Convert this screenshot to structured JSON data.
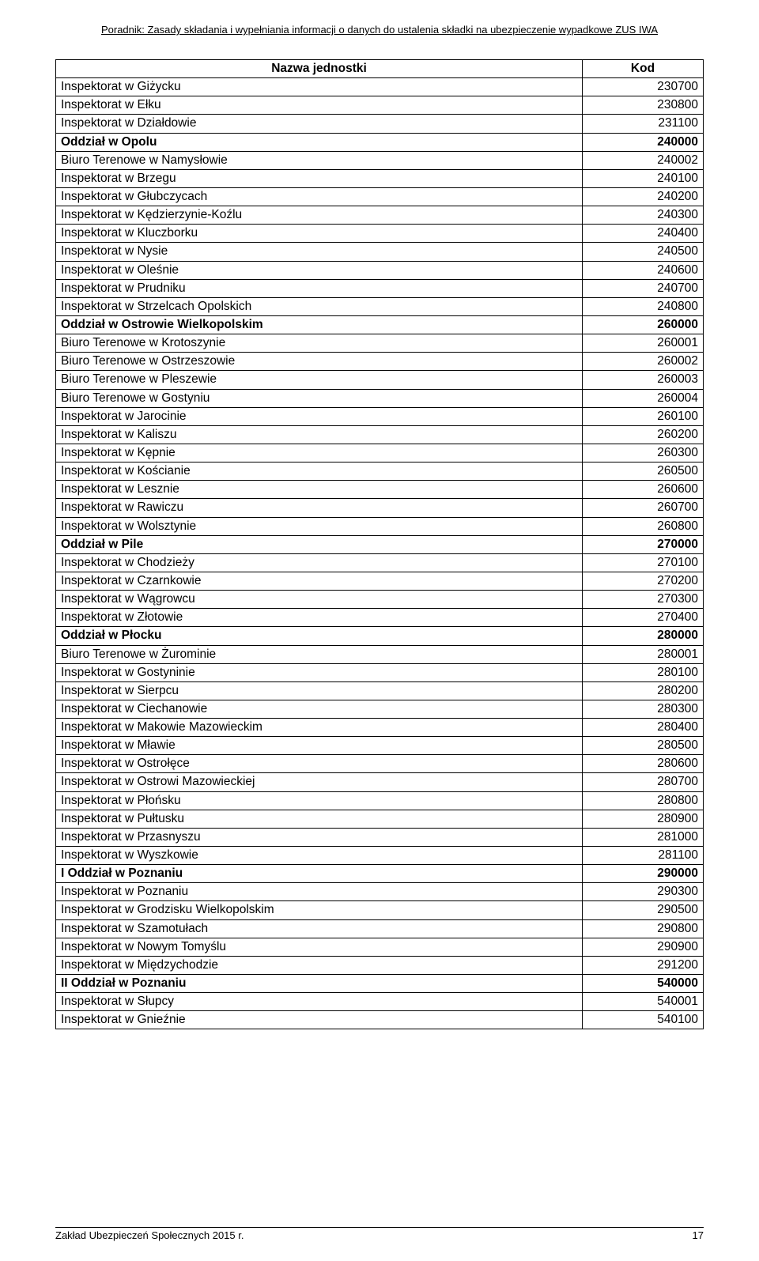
{
  "header": "Poradnik: Zasady składania i wypełniania informacji o danych do ustalenia składki na ubezpieczenie wypadkowe ZUS IWA",
  "table": {
    "col_name": "Nazwa jednostki",
    "col_code": "Kod",
    "rows": [
      {
        "name": "Inspektorat w Giżycku",
        "code": "230700",
        "bold": false
      },
      {
        "name": "Inspektorat w Ełku",
        "code": "230800",
        "bold": false
      },
      {
        "name": "Inspektorat w Działdowie",
        "code": "231100",
        "bold": false
      },
      {
        "name": "Oddział w Opolu",
        "code": "240000",
        "bold": true
      },
      {
        "name": "Biuro Terenowe w Namysłowie",
        "code": "240002",
        "bold": false
      },
      {
        "name": "Inspektorat w Brzegu",
        "code": "240100",
        "bold": false
      },
      {
        "name": "Inspektorat w Głubczycach",
        "code": "240200",
        "bold": false
      },
      {
        "name": "Inspektorat w Kędzierzynie-Koźlu",
        "code": "240300",
        "bold": false
      },
      {
        "name": "Inspektorat w Kluczborku",
        "code": "240400",
        "bold": false
      },
      {
        "name": "Inspektorat w Nysie",
        "code": "240500",
        "bold": false
      },
      {
        "name": "Inspektorat w Oleśnie",
        "code": "240600",
        "bold": false
      },
      {
        "name": "Inspektorat w Prudniku",
        "code": "240700",
        "bold": false
      },
      {
        "name": "Inspektorat w Strzelcach Opolskich",
        "code": "240800",
        "bold": false
      },
      {
        "name": "Oddział w Ostrowie Wielkopolskim",
        "code": "260000",
        "bold": true
      },
      {
        "name": "Biuro Terenowe w Krotoszynie",
        "code": "260001",
        "bold": false
      },
      {
        "name": "Biuro Terenowe w Ostrzeszowie",
        "code": "260002",
        "bold": false
      },
      {
        "name": "Biuro Terenowe w Pleszewie",
        "code": "260003",
        "bold": false
      },
      {
        "name": "Biuro Terenowe w Gostyniu",
        "code": "260004",
        "bold": false
      },
      {
        "name": "Inspektorat w Jarocinie",
        "code": "260100",
        "bold": false
      },
      {
        "name": "Inspektorat w Kaliszu",
        "code": "260200",
        "bold": false
      },
      {
        "name": "Inspektorat w Kępnie",
        "code": "260300",
        "bold": false
      },
      {
        "name": "Inspektorat w Kościanie",
        "code": "260500",
        "bold": false
      },
      {
        "name": "Inspektorat w Lesznie",
        "code": "260600",
        "bold": false
      },
      {
        "name": "Inspektorat w Rawiczu",
        "code": "260700",
        "bold": false
      },
      {
        "name": "Inspektorat w Wolsztynie",
        "code": "260800",
        "bold": false
      },
      {
        "name": "Oddział w Pile",
        "code": "270000",
        "bold": true
      },
      {
        "name": "Inspektorat w Chodzieży",
        "code": "270100",
        "bold": false
      },
      {
        "name": "Inspektorat w Czarnkowie",
        "code": "270200",
        "bold": false
      },
      {
        "name": "Inspektorat w Wągrowcu",
        "code": "270300",
        "bold": false
      },
      {
        "name": "Inspektorat w Złotowie",
        "code": "270400",
        "bold": false
      },
      {
        "name": "Oddział w Płocku",
        "code": "280000",
        "bold": true
      },
      {
        "name": "Biuro Terenowe w Żurominie",
        "code": "280001",
        "bold": false
      },
      {
        "name": "Inspektorat w Gostyninie",
        "code": "280100",
        "bold": false
      },
      {
        "name": "Inspektorat w Sierpcu",
        "code": "280200",
        "bold": false
      },
      {
        "name": "Inspektorat w Ciechanowie",
        "code": "280300",
        "bold": false
      },
      {
        "name": "Inspektorat w Makowie Mazowieckim",
        "code": "280400",
        "bold": false
      },
      {
        "name": "Inspektorat w Mławie",
        "code": "280500",
        "bold": false
      },
      {
        "name": "Inspektorat w Ostrołęce",
        "code": "280600",
        "bold": false
      },
      {
        "name": "Inspektorat w Ostrowi Mazowieckiej",
        "code": "280700",
        "bold": false
      },
      {
        "name": "Inspektorat w Płońsku",
        "code": "280800",
        "bold": false
      },
      {
        "name": "Inspektorat w Pułtusku",
        "code": "280900",
        "bold": false
      },
      {
        "name": "Inspektorat w Przasnyszu",
        "code": "281000",
        "bold": false
      },
      {
        "name": "Inspektorat w Wyszkowie",
        "code": "281100",
        "bold": false
      },
      {
        "name": "I Oddział w Poznaniu",
        "code": "290000",
        "bold": true
      },
      {
        "name": "Inspektorat w Poznaniu",
        "code": "290300",
        "bold": false
      },
      {
        "name": "Inspektorat w Grodzisku Wielkopolskim",
        "code": "290500",
        "bold": false
      },
      {
        "name": "Inspektorat w Szamotułach",
        "code": "290800",
        "bold": false
      },
      {
        "name": "Inspektorat w Nowym Tomyślu",
        "code": "290900",
        "bold": false
      },
      {
        "name": "Inspektorat w Międzychodzie",
        "code": "291200",
        "bold": false
      },
      {
        "name": "II Oddział w Poznaniu",
        "code": "540000",
        "bold": true
      },
      {
        "name": "Inspektorat w Słupcy",
        "code": "540001",
        "bold": false
      },
      {
        "name": "Inspektorat w Gnieźnie",
        "code": "540100",
        "bold": false
      }
    ]
  },
  "footer_left": "Zakład Ubezpieczeń Społecznych 2015 r.",
  "footer_page": "17"
}
